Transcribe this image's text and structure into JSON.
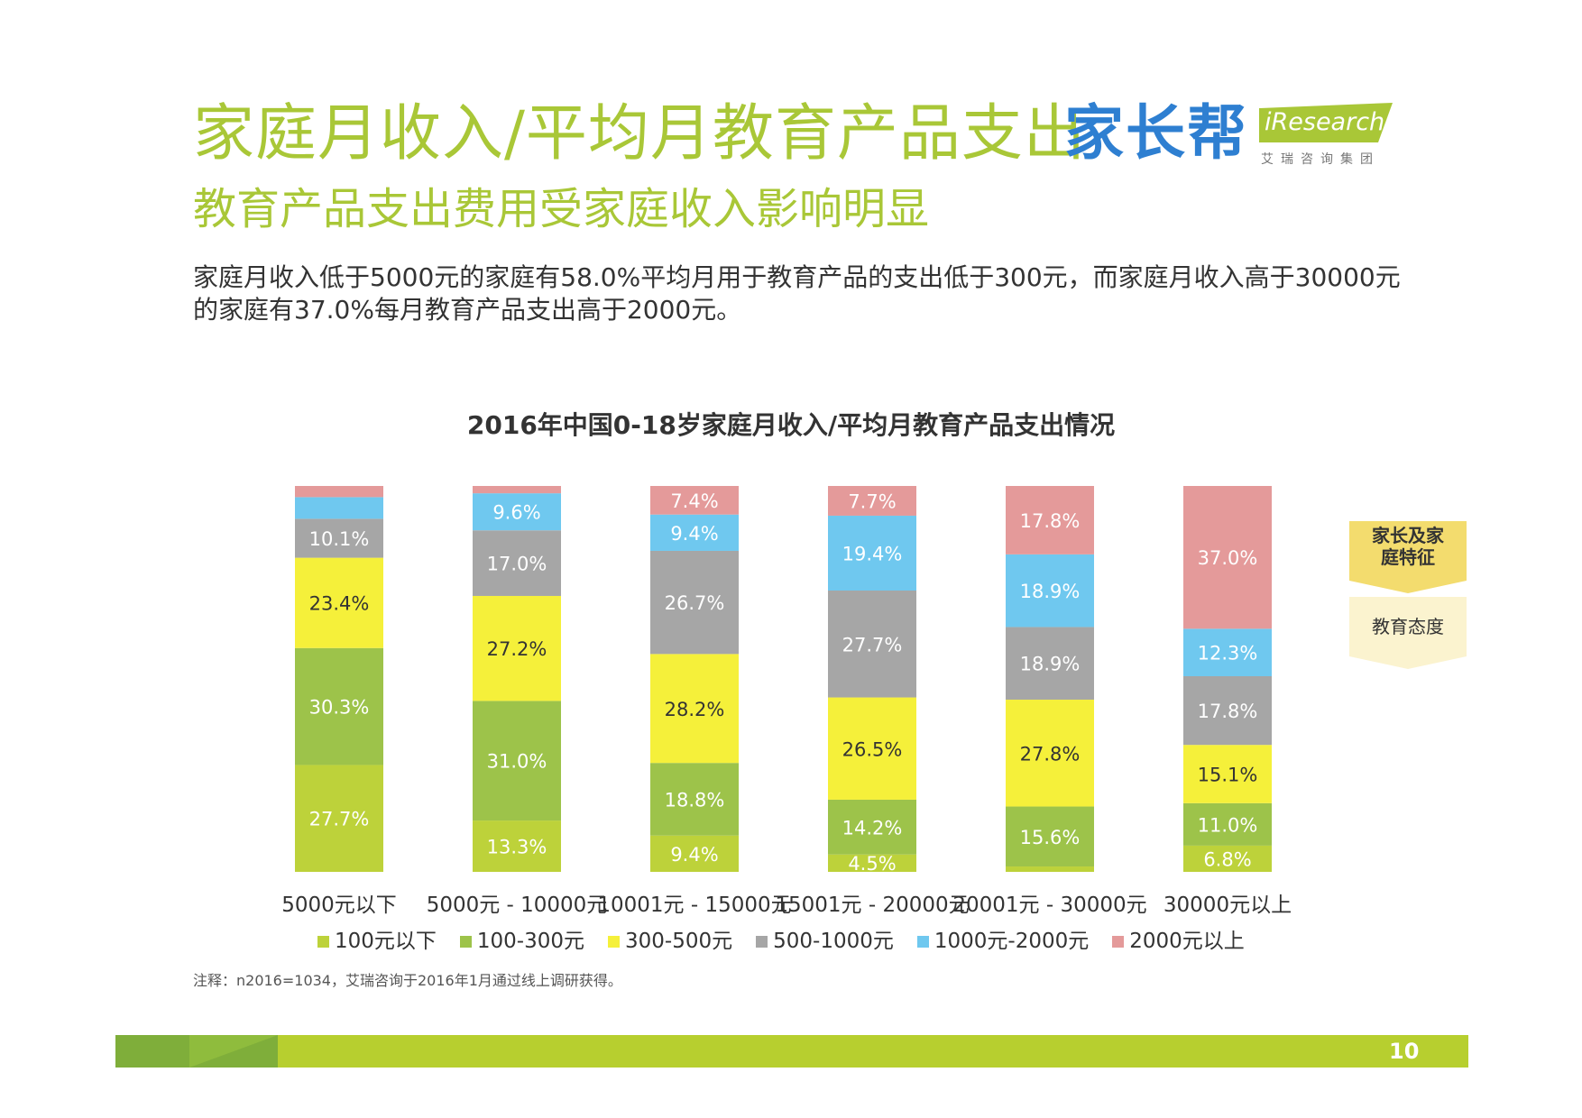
{
  "header": {
    "title": "家庭月收入/平均月教育产品支出",
    "brand": "家长帮",
    "logo_text": "iResearch",
    "logo_sub": "艾瑞咨询集团",
    "subtitle": "教育产品支出费用受家庭收入影响明显",
    "description": "家庭月收入低于5000元的家庭有58.0%平均月用于教育产品的支出低于300元，而家庭月收入高于30000元的家庭有37.0%每月教育产品支出高于2000元。"
  },
  "side_tabs": {
    "active": "家长及家庭特征",
    "inactive": "教育态度"
  },
  "note": "注释：n2016=1034，艾瑞咨询于2016年1月通过线上调研获得。",
  "page_number": "10",
  "colors": {
    "title_green": "#a9c737",
    "s1": "#bdd23a",
    "s2": "#9dc34a",
    "s3": "#f5f03a",
    "s4": "#a6a6a6",
    "s5": "#6fc8ef",
    "s6": "#e49a9a"
  },
  "chart_data": {
    "type": "bar",
    "stacked": true,
    "title": "2016年中国0-18岁家庭月收入/平均月教育产品支出情况",
    "categories": [
      "5000元以下",
      "5000元 - 10000元",
      "10001元 - 15000元",
      "15001元 - 20000元",
      "20001元 - 30000元",
      "30000元以上"
    ],
    "series": [
      {
        "name": "100元以下",
        "color": "#bdd23a",
        "values": [
          27.7,
          13.3,
          9.4,
          4.5,
          1.4,
          6.8
        ],
        "labels": [
          "27.7%",
          "13.3%",
          "9.4%",
          "4.5%",
          "",
          "6.8%"
        ]
      },
      {
        "name": "100-300元",
        "color": "#9dc34a",
        "values": [
          30.3,
          31.0,
          18.8,
          14.2,
          15.6,
          11.0
        ],
        "labels": [
          "30.3%",
          "31.0%",
          "18.8%",
          "14.2%",
          "15.6%",
          "11.0%"
        ]
      },
      {
        "name": "300-500元",
        "color": "#f5f03a",
        "values": [
          23.4,
          27.2,
          28.2,
          26.5,
          27.8,
          15.1
        ],
        "labels": [
          "23.4%",
          "27.2%",
          "28.2%",
          "26.5%",
          "27.8%",
          "15.1%"
        ]
      },
      {
        "name": "500-1000元",
        "color": "#a6a6a6",
        "values": [
          10.1,
          17.0,
          26.7,
          27.7,
          18.9,
          17.8
        ],
        "labels": [
          "10.1%",
          "17.0%",
          "26.7%",
          "27.7%",
          "18.9%",
          "17.8%"
        ]
      },
      {
        "name": "1000元-2000元",
        "color": "#6fc8ef",
        "values": [
          5.6,
          9.6,
          9.4,
          19.4,
          18.9,
          12.3
        ],
        "labels": [
          "",
          "9.6%",
          "9.4%",
          "19.4%",
          "18.9%",
          "12.3%"
        ]
      },
      {
        "name": "2000元以上",
        "color": "#e49a9a",
        "values": [
          2.9,
          1.9,
          7.4,
          7.7,
          17.8,
          37.0
        ],
        "labels": [
          "",
          "",
          "7.4%",
          "7.7%",
          "17.8%",
          "37.0%"
        ]
      }
    ],
    "ylim": [
      0,
      100
    ],
    "grid": false,
    "legend": "bottom"
  }
}
